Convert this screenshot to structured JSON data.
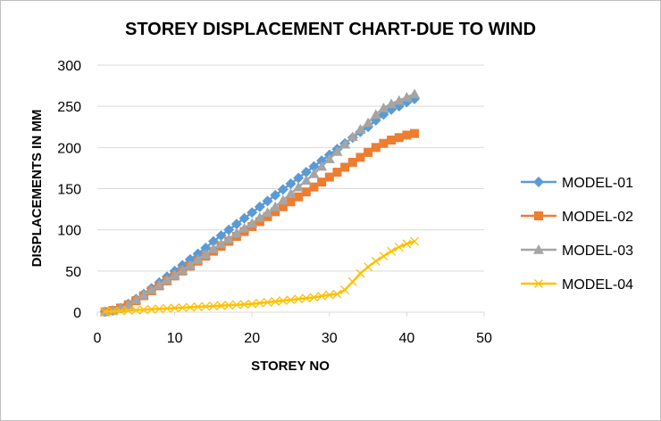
{
  "chart_data": {
    "type": "line",
    "title": "STOREY DISPLACEMENT CHART-DUE TO WIND",
    "xlabel": "STOREY NO",
    "ylabel": "DISPLACEMENTS IN MM",
    "xlim": [
      0,
      50
    ],
    "ylim": [
      0,
      300
    ],
    "xticks": [
      "0",
      "10",
      "20",
      "30",
      "40",
      "50"
    ],
    "yticks": [
      "0",
      "50",
      "100",
      "150",
      "200",
      "250",
      "300"
    ],
    "grid": "horizontal",
    "legend": "right",
    "x": [
      1,
      2,
      3,
      4,
      5,
      6,
      7,
      8,
      9,
      10,
      11,
      12,
      13,
      14,
      15,
      16,
      17,
      18,
      19,
      20,
      21,
      22,
      23,
      24,
      25,
      26,
      27,
      28,
      29,
      30,
      31,
      32,
      33,
      34,
      35,
      36,
      37,
      38,
      39,
      40,
      41
    ],
    "series": [
      {
        "name": "MODEL-01",
        "color": "#5B9BD5",
        "marker": "diamond",
        "values": [
          0.5,
          2,
          5,
          10,
          16,
          22,
          29,
          36,
          43,
          50,
          57,
          64,
          71,
          78,
          86,
          93,
          100,
          107,
          114,
          121,
          128,
          135,
          142,
          149,
          156,
          163,
          170,
          177,
          184,
          191,
          198,
          205,
          212,
          219,
          225,
          233,
          240,
          246,
          250,
          255,
          259
        ]
      },
      {
        "name": "MODEL-02",
        "color": "#ED7D31",
        "marker": "square",
        "values": [
          0.5,
          2,
          5,
          9,
          14,
          20,
          26,
          32,
          38,
          44,
          50,
          56,
          62,
          68,
          74,
          80,
          86,
          92,
          98,
          104,
          110,
          116,
          122,
          128,
          134,
          140,
          146,
          152,
          158,
          164,
          170,
          176,
          182,
          188,
          194,
          200,
          205,
          209,
          212,
          215,
          217
        ]
      },
      {
        "name": "MODEL-03",
        "color": "#A5A5A5",
        "marker": "triangle",
        "values": [
          0.5,
          2,
          5,
          9,
          15,
          21,
          27,
          33,
          39,
          45,
          51,
          57,
          64,
          70,
          77,
          83,
          89,
          96,
          102,
          108,
          115,
          121,
          128,
          136,
          144,
          152,
          160,
          168,
          177,
          186,
          195,
          204,
          213,
          222,
          230,
          240,
          248,
          253,
          257,
          261,
          265
        ]
      },
      {
        "name": "MODEL-04",
        "color": "#FFC000",
        "marker": "x",
        "values": [
          0.5,
          1,
          1.5,
          2,
          2.5,
          3,
          3.5,
          4,
          4.5,
          5,
          5.5,
          6,
          6.5,
          7,
          7.5,
          8,
          8.5,
          9,
          9.5,
          10,
          11,
          12,
          13,
          14,
          15,
          16,
          17,
          18,
          19.5,
          21,
          22,
          27,
          37,
          47,
          55,
          62,
          68,
          74,
          79,
          83,
          86
        ]
      }
    ]
  }
}
